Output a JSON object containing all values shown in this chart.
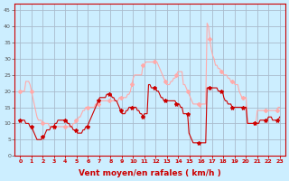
{
  "xlabel": "Vent moyen/en rafales ( km/h )",
  "bg_color": "#cceeff",
  "grid_color": "#aabbcc",
  "line_color_mean": "#cc0000",
  "line_color_gust": "#ffaaaa",
  "ylim": [
    0,
    47
  ],
  "yticks": [
    0,
    5,
    10,
    15,
    20,
    25,
    30,
    35,
    40,
    45
  ],
  "hour_ticks": [
    0,
    1,
    2,
    3,
    4,
    5,
    6,
    7,
    8,
    9,
    10,
    11,
    12,
    13,
    14,
    15,
    16,
    17,
    18,
    19,
    20,
    21,
    22,
    23
  ],
  "mean_values": [
    11,
    11,
    11,
    11,
    10,
    10,
    10,
    9,
    9,
    8,
    7,
    6,
    5,
    5,
    5,
    5,
    6,
    6,
    7,
    8,
    8,
    8,
    9,
    9,
    9,
    10,
    10,
    11,
    11,
    11,
    11,
    11,
    11,
    11,
    10,
    10,
    9,
    9,
    8,
    8,
    8,
    7,
    7,
    7,
    7,
    8,
    8,
    9,
    9,
    10,
    11,
    12,
    13,
    14,
    15,
    16,
    17,
    18,
    18,
    18,
    18,
    18,
    19,
    19,
    19,
    19,
    18,
    18,
    17,
    17,
    16,
    15,
    14,
    13,
    13,
    13,
    14,
    14,
    15,
    15,
    15,
    15,
    15,
    15,
    14,
    14,
    13,
    13,
    12,
    13,
    13,
    13,
    22,
    22,
    21,
    21,
    21,
    21,
    20,
    20,
    19,
    18,
    18,
    17,
    17,
    17,
    17,
    17,
    17,
    17,
    17,
    17,
    16,
    16,
    16,
    15,
    15,
    13,
    13,
    13,
    13,
    7,
    6,
    5,
    4,
    4,
    4,
    4,
    4,
    4,
    4,
    4,
    4,
    4,
    21,
    21,
    21,
    21,
    21,
    21,
    21,
    21,
    20,
    20,
    20,
    20,
    18,
    17,
    17,
    16,
    16,
    16,
    15,
    15,
    15,
    15,
    15,
    15,
    15,
    15,
    15,
    15,
    15,
    10,
    10,
    10,
    10,
    10,
    10,
    10,
    10,
    10,
    11,
    11,
    11,
    11,
    11,
    11,
    12,
    12,
    12,
    11,
    11,
    11,
    11,
    11,
    12
  ],
  "gust_values": [
    20,
    20,
    20,
    20,
    23,
    23,
    23,
    22,
    20,
    18,
    16,
    14,
    12,
    11,
    11,
    11,
    10,
    10,
    10,
    10,
    10,
    9,
    9,
    9,
    9,
    9,
    9,
    9,
    9,
    9,
    9,
    9,
    9,
    9,
    9,
    9,
    9,
    9,
    10,
    10,
    11,
    11,
    12,
    12,
    13,
    14,
    14,
    15,
    15,
    15,
    15,
    15,
    15,
    15,
    16,
    16,
    16,
    17,
    17,
    17,
    17,
    17,
    17,
    17,
    17,
    17,
    17,
    17,
    17,
    17,
    17,
    18,
    18,
    18,
    18,
    18,
    18,
    19,
    19,
    20,
    22,
    24,
    25,
    25,
    25,
    25,
    25,
    25,
    28,
    28,
    29,
    29,
    29,
    29,
    29,
    29,
    29,
    29,
    29,
    28,
    27,
    26,
    25,
    24,
    23,
    22,
    22,
    22,
    23,
    23,
    24,
    24,
    25,
    26,
    26,
    26,
    26,
    22,
    22,
    21,
    20,
    19,
    18,
    17,
    16,
    16,
    16,
    16,
    16,
    15,
    16,
    16,
    16,
    16,
    41,
    40,
    36,
    33,
    31,
    30,
    28,
    28,
    27,
    27,
    26,
    26,
    25,
    25,
    25,
    24,
    24,
    23,
    23,
    23,
    22,
    22,
    22,
    20,
    19,
    18,
    18,
    18,
    18,
    10,
    10,
    10,
    10,
    10,
    10,
    10,
    14,
    14,
    14,
    14,
    14,
    14,
    14,
    14,
    14,
    14,
    14,
    14,
    14,
    14,
    14,
    15,
    15
  ]
}
